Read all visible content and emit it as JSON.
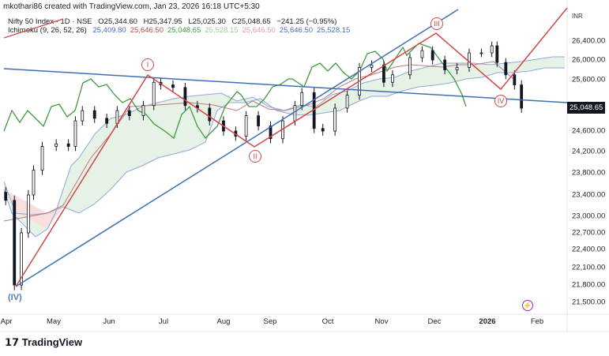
{
  "header": {
    "credit": "mkothari86 created with TradingView.com, Jan 23, 2026 16:18 UTC+5:30"
  },
  "legend": {
    "symbol": "Nifty 50 Index · 1D · NSE",
    "open": "O25,344.60",
    "high": "H25,347.95",
    "low": "L25,025.30",
    "close": "C25,048.65",
    "change": "−241.25 (−0.95%)",
    "ichimoku_label": "Ichimoku (9, 26, 52, 26)",
    "ichimoku_values": [
      {
        "text": "25,409.80",
        "color": "#4a6fc0"
      },
      {
        "text": "25,646.50",
        "color": "#b04a4a"
      },
      {
        "text": "25,048.65",
        "color": "#3f9a3f"
      },
      {
        "text": "25,528.15",
        "color": "#9ccc9c"
      },
      {
        "text": "25,646.50",
        "color": "#e0a0a0"
      },
      {
        "text": "25,646.50",
        "color": "#4a6fc0"
      },
      {
        "text": "25,528.15",
        "color": "#4a6fc0"
      }
    ]
  },
  "chart_data": {
    "type": "candlestick",
    "symbol": "Nifty 50 Index",
    "currency": "INR",
    "last_price": "25,048.65",
    "y_ticks": [
      26400,
      26000,
      25600,
      24600,
      24200,
      23800,
      23400,
      23000,
      22700,
      22400,
      22100,
      21800,
      21500
    ],
    "y_tick_labels": [
      "26,400.00",
      "26,000.00",
      "25,600.00",
      "24,600.00",
      "24,200.00",
      "23,800.00",
      "23,400.00",
      "23,000.00",
      "22,700.00",
      "22,400.00",
      "22,100.00",
      "21,800.00",
      "21,500.00"
    ],
    "x_tick_labels": [
      "Apr",
      "May",
      "Jun",
      "Jul",
      "Aug",
      "Sep",
      "Oct",
      "Nov",
      "Dec",
      "2026",
      "Feb"
    ],
    "closes": [
      [
        "2025-04-02",
        23300
      ],
      [
        "2025-04-07",
        21800
      ],
      [
        "2025-04-11",
        22700
      ],
      [
        "2025-04-15",
        23400
      ],
      [
        "2025-04-18",
        23850
      ],
      [
        "2025-04-23",
        24300
      ],
      [
        "2025-05-01",
        24350
      ],
      [
        "2025-05-08",
        24300
      ],
      [
        "2025-05-12",
        24800
      ],
      [
        "2025-05-16",
        25000
      ],
      [
        "2025-05-23",
        24850
      ],
      [
        "2025-05-30",
        24750
      ],
      [
        "2025-06-05",
        25000
      ],
      [
        "2025-06-12",
        24900
      ],
      [
        "2025-06-20",
        25100
      ],
      [
        "2025-06-26",
        25550
      ],
      [
        "2025-06-30",
        25500
      ],
      [
        "2025-07-07",
        25450
      ],
      [
        "2025-07-14",
        25100
      ],
      [
        "2025-07-21",
        25050
      ],
      [
        "2025-07-28",
        24800
      ],
      [
        "2025-08-05",
        24600
      ],
      [
        "2025-08-12",
        24500
      ],
      [
        "2025-08-18",
        24900
      ],
      [
        "2025-08-25",
        24700
      ],
      [
        "2025-09-01",
        24450
      ],
      [
        "2025-09-08",
        24800
      ],
      [
        "2025-09-15",
        25100
      ],
      [
        "2025-09-19",
        25350
      ],
      [
        "2025-09-26",
        24650
      ],
      [
        "2025-10-01",
        24600
      ],
      [
        "2025-10-08",
        25050
      ],
      [
        "2025-10-15",
        25300
      ],
      [
        "2025-10-22",
        25850
      ],
      [
        "2025-10-29",
        25900
      ],
      [
        "2025-11-05",
        25550
      ],
      [
        "2025-11-10",
        25700
      ],
      [
        "2025-11-20",
        26050
      ],
      [
        "2025-11-27",
        26200
      ],
      [
        "2025-12-03",
        26000
      ],
      [
        "2025-12-10",
        25800
      ],
      [
        "2025-12-17",
        25850
      ],
      [
        "2025-12-24",
        26150
      ],
      [
        "2025-12-31",
        26150
      ],
      [
        "2026-01-06",
        26300
      ],
      [
        "2026-01-09",
        25950
      ],
      [
        "2026-01-14",
        25700
      ],
      [
        "2026-01-19",
        25500
      ],
      [
        "2026-01-23",
        25048.65
      ]
    ],
    "annotations": {
      "waves": [
        "I",
        "II",
        "III",
        "IV"
      ],
      "start_wave": "(IV)"
    },
    "colors": {
      "candle": "#131722",
      "trendline": "#3f6fb5",
      "wave_line": "#d04848",
      "chikou": "#3f9a3f",
      "cloud_bull": "#e3f1e3",
      "cloud_bear": "#f9dede"
    }
  },
  "branding": {
    "logo": "TradingView"
  }
}
